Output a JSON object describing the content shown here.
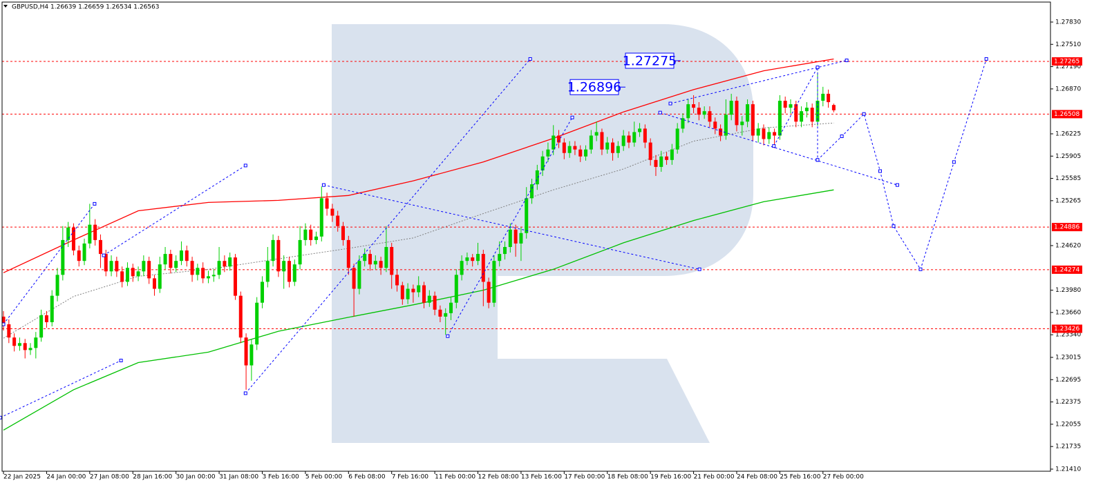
{
  "chart_data": {
    "type": "candlestick",
    "title": "GBPUSD,H4  1.26639 1.26659 1.26534 1.26563",
    "bull_color": "#00d000",
    "bear_color": "#ff0000",
    "xlim": [
      -0.26,
      194.2
    ],
    "ylim": [
      1.2138,
      1.28117
    ],
    "yticks": [
      {
        "value": 1.2783,
        "label": "1.27830"
      },
      {
        "value": 1.2751,
        "label": "1.27510"
      },
      {
        "value": 1.2719,
        "label": "1.27190"
      },
      {
        "value": 1.2687,
        "label": "1.26870"
      },
      1.26225,
      1.25905,
      1.25585,
      1.25265,
      {
        "value": 1.2462,
        "label": "1.24620"
      },
      {
        "value": 1.2398,
        "label": "1.23980"
      },
      {
        "value": 1.2366,
        "label": "1.23660"
      },
      {
        "value": 1.2334,
        "label": "1.23340"
      },
      1.23015,
      1.22695,
      1.22375,
      1.22055,
      1.21735,
      {
        "value": 1.2141,
        "label": "1.21410"
      }
    ],
    "xticks": [
      {
        "value": 0,
        "label": "22 Jan 2025"
      },
      {
        "value": 8,
        "label": "24 Jan 00:00"
      },
      {
        "value": 16,
        "label": "27 Jan 08:00"
      },
      {
        "value": 24,
        "label": "28 Jan 16:00"
      },
      {
        "value": 32,
        "label": "30 Jan 00:00"
      },
      {
        "value": 40,
        "label": "31 Jan 08:00"
      },
      {
        "value": 48,
        "label": "3 Feb 16:00"
      },
      {
        "value": 56,
        "label": "5 Feb 00:00"
      },
      {
        "value": 64,
        "label": "6 Feb 08:00"
      },
      {
        "value": 72,
        "label": "7 Feb 16:00"
      },
      {
        "value": 80,
        "label": "11 Feb 00:00"
      },
      {
        "value": 88,
        "label": "12 Feb 08:00"
      },
      {
        "value": 96,
        "label": "13 Feb 16:00"
      },
      {
        "value": 104,
        "label": "17 Feb 00:00"
      },
      {
        "value": 112,
        "label": "18 Feb 08:00"
      },
      {
        "value": 120,
        "label": "19 Feb 16:00"
      },
      {
        "value": 128,
        "label": "21 Feb 00:00"
      },
      {
        "value": 136,
        "label": "24 Feb 08:00"
      },
      {
        "value": 144,
        "label": "25 Feb 16:00"
      },
      {
        "value": 152,
        "label": "27 Feb 00:00"
      }
    ],
    "levels": [
      1.27265,
      1.26508,
      1.24886,
      1.24274,
      1.23426
    ],
    "level_color": "#ff0000",
    "price_labels": [
      1.27275,
      1.26896
    ],
    "indicators": [
      {
        "color": "#ff0000",
        "style": "solid",
        "x": [
          0,
          13,
          25,
          38,
          51,
          64,
          76,
          89,
          102,
          115,
          128,
          141,
          154
        ],
        "values": [
          1.2423,
          1.247,
          1.2512,
          1.2524,
          1.2527,
          1.2534,
          1.2555,
          1.2582,
          1.2616,
          1.2654,
          1.2686,
          1.2713,
          1.273
        ]
      },
      {
        "color": "#00c000",
        "style": "solid",
        "x": [
          0,
          13,
          25,
          38,
          51,
          64,
          76,
          89,
          102,
          115,
          128,
          141,
          154
        ],
        "values": [
          1.2197,
          1.2255,
          1.2294,
          1.2309,
          1.2339,
          1.2359,
          1.2377,
          1.2398,
          1.2428,
          1.2466,
          1.2498,
          1.2525,
          1.2542
        ]
      },
      {
        "color": "#808080",
        "style": "dotted",
        "x": [
          0,
          13,
          25,
          38,
          51,
          64,
          76,
          89,
          102,
          115,
          128,
          141,
          154
        ],
        "values": [
          1.2329,
          1.2389,
          1.2418,
          1.2428,
          1.2443,
          1.2458,
          1.2473,
          1.2508,
          1.2542,
          1.2572,
          1.2612,
          1.2631,
          1.2638
        ]
      }
    ],
    "trend_color": "#0000ff",
    "trendlines": [
      {
        "x": [
          -0.6,
          21.8
        ],
        "values": [
          1.2215,
          1.2297
        ]
      },
      {
        "x": [
          0,
          16.9
        ],
        "values": [
          1.2349,
          1.2522
        ]
      },
      {
        "x": [
          18.6,
          44.9
        ],
        "values": [
          1.2448,
          1.2577
        ]
      },
      {
        "x": [
          44.9,
          97.7
        ],
        "values": [
          1.225,
          1.273
        ]
      },
      {
        "x": [
          59.4,
          129.1
        ],
        "values": [
          1.2549,
          1.2428
        ]
      },
      {
        "x": [
          82.4,
          105.5
        ],
        "values": [
          1.2332,
          1.2646
        ]
      },
      {
        "x": [
          123.7,
          156.4
        ],
        "values": [
          1.2666,
          1.2728
        ]
      },
      {
        "x": [
          121.8,
          165.8
        ],
        "values": [
          1.2653,
          1.2549
        ]
      },
      {
        "x": [
          142.9,
          151,
          151
        ],
        "values": [
          1.2605,
          1.2718,
          1.2585
        ]
      },
      {
        "x": [
          151,
          155.5,
          159.6,
          162.6,
          165.1,
          170.1,
          176.3,
          182.3
        ],
        "values": [
          1.2585,
          1.2619,
          1.2651,
          1.2569,
          1.249,
          1.2428,
          1.2582,
          1.273
        ]
      }
    ],
    "candles": [
      [
        1.236,
        1.2368,
        1.234,
        1.2349
      ],
      [
        1.2349,
        1.2356,
        1.2322,
        1.233
      ],
      [
        1.233,
        1.2336,
        1.231,
        1.2318
      ],
      [
        1.2318,
        1.233,
        1.2311,
        1.2322
      ],
      [
        1.2322,
        1.2328,
        1.23,
        1.2312
      ],
      [
        1.2312,
        1.2322,
        1.2305,
        1.2315
      ],
      [
        1.2315,
        1.2338,
        1.23,
        1.233
      ],
      [
        1.233,
        1.237,
        1.2324,
        1.2362
      ],
      [
        1.2362,
        1.2368,
        1.2344,
        1.2352
      ],
      [
        1.2352,
        1.2398,
        1.2346,
        1.239
      ],
      [
        1.239,
        1.243,
        1.2382,
        1.242
      ],
      [
        1.242,
        1.249,
        1.2412,
        1.247
      ],
      [
        1.247,
        1.2496,
        1.246,
        1.2488
      ],
      [
        1.2488,
        1.2494,
        1.2448,
        1.2455
      ],
      [
        1.2455,
        1.2462,
        1.2432,
        1.244
      ],
      [
        1.244,
        1.2472,
        1.2434,
        1.2465
      ],
      [
        1.2465,
        1.2522,
        1.2458,
        1.2492
      ],
      [
        1.2492,
        1.25,
        1.2462,
        1.247
      ],
      [
        1.247,
        1.2478,
        1.243,
        1.245
      ],
      [
        1.245,
        1.2456,
        1.2418,
        1.2425
      ],
      [
        1.2425,
        1.2448,
        1.2418,
        1.244
      ],
      [
        1.244,
        1.2446,
        1.2417,
        1.2425
      ],
      [
        1.2425,
        1.2432,
        1.2402,
        1.241
      ],
      [
        1.241,
        1.2438,
        1.2404,
        1.243
      ],
      [
        1.243,
        1.2436,
        1.241,
        1.2418
      ],
      [
        1.2418,
        1.2432,
        1.2411,
        1.2425
      ],
      [
        1.2425,
        1.2448,
        1.2418,
        1.244
      ],
      [
        1.244,
        1.2446,
        1.2407,
        1.2415
      ],
      [
        1.2415,
        1.242,
        1.239,
        1.24
      ],
      [
        1.24,
        1.2446,
        1.2394,
        1.2435
      ],
      [
        1.2435,
        1.246,
        1.2428,
        1.245
      ],
      [
        1.245,
        1.2456,
        1.2422,
        1.243
      ],
      [
        1.243,
        1.2448,
        1.2424,
        1.244
      ],
      [
        1.244,
        1.2468,
        1.2434,
        1.2455
      ],
      [
        1.2455,
        1.2462,
        1.2432,
        1.244
      ],
      [
        1.244,
        1.2446,
        1.241,
        1.242
      ],
      [
        1.242,
        1.2436,
        1.2412,
        1.243
      ],
      [
        1.243,
        1.2438,
        1.2408,
        1.2415
      ],
      [
        1.2415,
        1.2426,
        1.2408,
        1.2418
      ],
      [
        1.2418,
        1.2428,
        1.241,
        1.242
      ],
      [
        1.242,
        1.246,
        1.2414,
        1.244
      ],
      [
        1.244,
        1.2448,
        1.2424,
        1.2432
      ],
      [
        1.2432,
        1.2452,
        1.2426,
        1.2445
      ],
      [
        1.2445,
        1.245,
        1.2384,
        1.239
      ],
      [
        1.239,
        1.2396,
        1.2322,
        1.233
      ],
      [
        1.233,
        1.2336,
        1.2255,
        1.229
      ],
      [
        1.229,
        1.2328,
        1.2268,
        1.232
      ],
      [
        1.232,
        1.2388,
        1.2312,
        1.238
      ],
      [
        1.238,
        1.2418,
        1.2372,
        1.241
      ],
      [
        1.241,
        1.246,
        1.2402,
        1.244
      ],
      [
        1.244,
        1.2478,
        1.2432,
        1.247
      ],
      [
        1.247,
        1.2476,
        1.2417,
        1.2425
      ],
      [
        1.2425,
        1.2448,
        1.24,
        1.244
      ],
      [
        1.244,
        1.2446,
        1.2402,
        1.241
      ],
      [
        1.241,
        1.2442,
        1.2404,
        1.2435
      ],
      [
        1.2435,
        1.249,
        1.2428,
        1.247
      ],
      [
        1.247,
        1.2494,
        1.2462,
        1.2485
      ],
      [
        1.2485,
        1.2492,
        1.2462,
        1.247
      ],
      [
        1.247,
        1.2482,
        1.2464,
        1.2475
      ],
      [
        1.2475,
        1.2547,
        1.2468,
        1.253
      ],
      [
        1.253,
        1.2538,
        1.2505,
        1.2515
      ],
      [
        1.2515,
        1.2522,
        1.2496,
        1.2505
      ],
      [
        1.2505,
        1.2512,
        1.2482,
        1.249
      ],
      [
        1.249,
        1.2496,
        1.2462,
        1.247
      ],
      [
        1.247,
        1.2476,
        1.242,
        1.243
      ],
      [
        1.243,
        1.2436,
        1.236,
        1.24
      ],
      [
        1.24,
        1.2448,
        1.2392,
        1.244
      ],
      [
        1.244,
        1.2458,
        1.2432,
        1.245
      ],
      [
        1.245,
        1.2456,
        1.2426,
        1.2435
      ],
      [
        1.2435,
        1.2448,
        1.2428,
        1.244
      ],
      [
        1.244,
        1.2446,
        1.242,
        1.243
      ],
      [
        1.243,
        1.249,
        1.2424,
        1.246
      ],
      [
        1.246,
        1.2466,
        1.24,
        1.242
      ],
      [
        1.242,
        1.2428,
        1.2396,
        1.2405
      ],
      [
        1.2405,
        1.241,
        1.2377,
        1.2385
      ],
      [
        1.2385,
        1.2408,
        1.2378,
        1.24
      ],
      [
        1.24,
        1.2406,
        1.238,
        1.2395
      ],
      [
        1.2395,
        1.2418,
        1.2388,
        1.2405
      ],
      [
        1.2405,
        1.241,
        1.2372,
        1.238
      ],
      [
        1.238,
        1.2398,
        1.2374,
        1.239
      ],
      [
        1.239,
        1.2396,
        1.2362,
        1.237
      ],
      [
        1.237,
        1.2376,
        1.2352,
        1.236
      ],
      [
        1.236,
        1.2372,
        1.2334,
        1.2365
      ],
      [
        1.2365,
        1.2388,
        1.2355,
        1.238
      ],
      [
        1.238,
        1.2428,
        1.2372,
        1.242
      ],
      [
        1.242,
        1.2448,
        1.2412,
        1.244
      ],
      [
        1.244,
        1.2452,
        1.2434,
        1.2445
      ],
      [
        1.2445,
        1.245,
        1.2432,
        1.244
      ],
      [
        1.244,
        1.2466,
        1.2434,
        1.245
      ],
      [
        1.245,
        1.2456,
        1.2375,
        1.241
      ],
      [
        1.241,
        1.2416,
        1.2372,
        1.238
      ],
      [
        1.238,
        1.2448,
        1.2374,
        1.244
      ],
      [
        1.244,
        1.2468,
        1.2432,
        1.245
      ],
      [
        1.245,
        1.2468,
        1.2442,
        1.246
      ],
      [
        1.246,
        1.2494,
        1.2452,
        1.2485
      ],
      [
        1.2485,
        1.2492,
        1.2446,
        1.2465
      ],
      [
        1.2465,
        1.2488,
        1.244,
        1.248
      ],
      [
        1.248,
        1.2546,
        1.2472,
        1.253
      ],
      [
        1.253,
        1.2558,
        1.2522,
        1.255
      ],
      [
        1.255,
        1.2578,
        1.2542,
        1.257
      ],
      [
        1.257,
        1.2598,
        1.2562,
        1.259
      ],
      [
        1.259,
        1.261,
        1.2582,
        1.26
      ],
      [
        1.26,
        1.2635,
        1.2592,
        1.262
      ],
      [
        1.262,
        1.2628,
        1.2602,
        1.261
      ],
      [
        1.261,
        1.2616,
        1.2586,
        1.2595
      ],
      [
        1.2595,
        1.2612,
        1.2588,
        1.2605
      ],
      [
        1.2605,
        1.2612,
        1.2592,
        1.26
      ],
      [
        1.26,
        1.2606,
        1.2582,
        1.259
      ],
      [
        1.259,
        1.2606,
        1.2584,
        1.26
      ],
      [
        1.26,
        1.2628,
        1.2594,
        1.262
      ],
      [
        1.262,
        1.264,
        1.2612,
        1.2625
      ],
      [
        1.2625,
        1.263,
        1.2592,
        1.26
      ],
      [
        1.26,
        1.2618,
        1.2594,
        1.261
      ],
      [
        1.261,
        1.2616,
        1.2584,
        1.2595
      ],
      [
        1.2595,
        1.2612,
        1.2588,
        1.2605
      ],
      [
        1.2605,
        1.2628,
        1.2598,
        1.262
      ],
      [
        1.262,
        1.2626,
        1.2602,
        1.261
      ],
      [
        1.261,
        1.264,
        1.2604,
        1.2625
      ],
      [
        1.2625,
        1.2638,
        1.2618,
        1.263
      ],
      [
        1.263,
        1.2636,
        1.2602,
        1.261
      ],
      [
        1.261,
        1.2616,
        1.2577,
        1.2585
      ],
      [
        1.2585,
        1.2592,
        1.2562,
        1.2575
      ],
      [
        1.2575,
        1.2598,
        1.2568,
        1.259
      ],
      [
        1.259,
        1.2596,
        1.2578,
        1.2585
      ],
      [
        1.2585,
        1.2608,
        1.2578,
        1.26
      ],
      [
        1.26,
        1.2638,
        1.2594,
        1.263
      ],
      [
        1.263,
        1.2652,
        1.2624,
        1.2645
      ],
      [
        1.2645,
        1.2672,
        1.2638,
        1.2665
      ],
      [
        1.2665,
        1.2678,
        1.2652,
        1.266
      ],
      [
        1.266,
        1.2668,
        1.2642,
        1.265
      ],
      [
        1.265,
        1.2662,
        1.2644,
        1.2655
      ],
      [
        1.2655,
        1.2662,
        1.2632,
        1.264
      ],
      [
        1.264,
        1.2646,
        1.2622,
        1.263
      ],
      [
        1.263,
        1.2636,
        1.2612,
        1.262
      ],
      [
        1.262,
        1.2672,
        1.2614,
        1.265
      ],
      [
        1.265,
        1.268,
        1.2642,
        1.267
      ],
      [
        1.267,
        1.2676,
        1.2626,
        1.2635
      ],
      [
        1.2635,
        1.2648,
        1.262,
        1.264
      ],
      [
        1.264,
        1.2672,
        1.2632,
        1.2665
      ],
      [
        1.2665,
        1.267,
        1.2612,
        1.262
      ],
      [
        1.262,
        1.2638,
        1.261,
        1.263
      ],
      [
        1.263,
        1.2636,
        1.2606,
        1.2615
      ],
      [
        1.2615,
        1.2632,
        1.2608,
        1.2625
      ],
      [
        1.2625,
        1.263,
        1.2602,
        1.262
      ],
      [
        1.262,
        1.2678,
        1.2614,
        1.267
      ],
      [
        1.267,
        1.2676,
        1.2652,
        1.266
      ],
      [
        1.266,
        1.2672,
        1.2652,
        1.2665
      ],
      [
        1.2665,
        1.267,
        1.2632,
        1.264
      ],
      [
        1.264,
        1.2662,
        1.2632,
        1.2655
      ],
      [
        1.2655,
        1.2668,
        1.2646,
        1.266
      ],
      [
        1.266,
        1.2666,
        1.2632,
        1.264
      ],
      [
        1.264,
        1.2711,
        1.2634,
        1.267
      ],
      [
        1.267,
        1.269,
        1.2662,
        1.268
      ],
      [
        1.268,
        1.2686,
        1.266,
        1.2668
      ],
      [
        1.26639,
        1.26659,
        1.26534,
        1.26563
      ]
    ]
  }
}
